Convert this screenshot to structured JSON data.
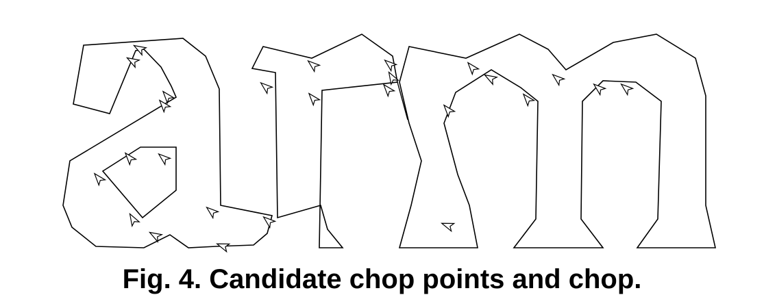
{
  "figure": {
    "caption": "Fig. 4. Candidate chop points and chop.",
    "stroke_color": "#000000",
    "background_color": "#ffffff"
  }
}
